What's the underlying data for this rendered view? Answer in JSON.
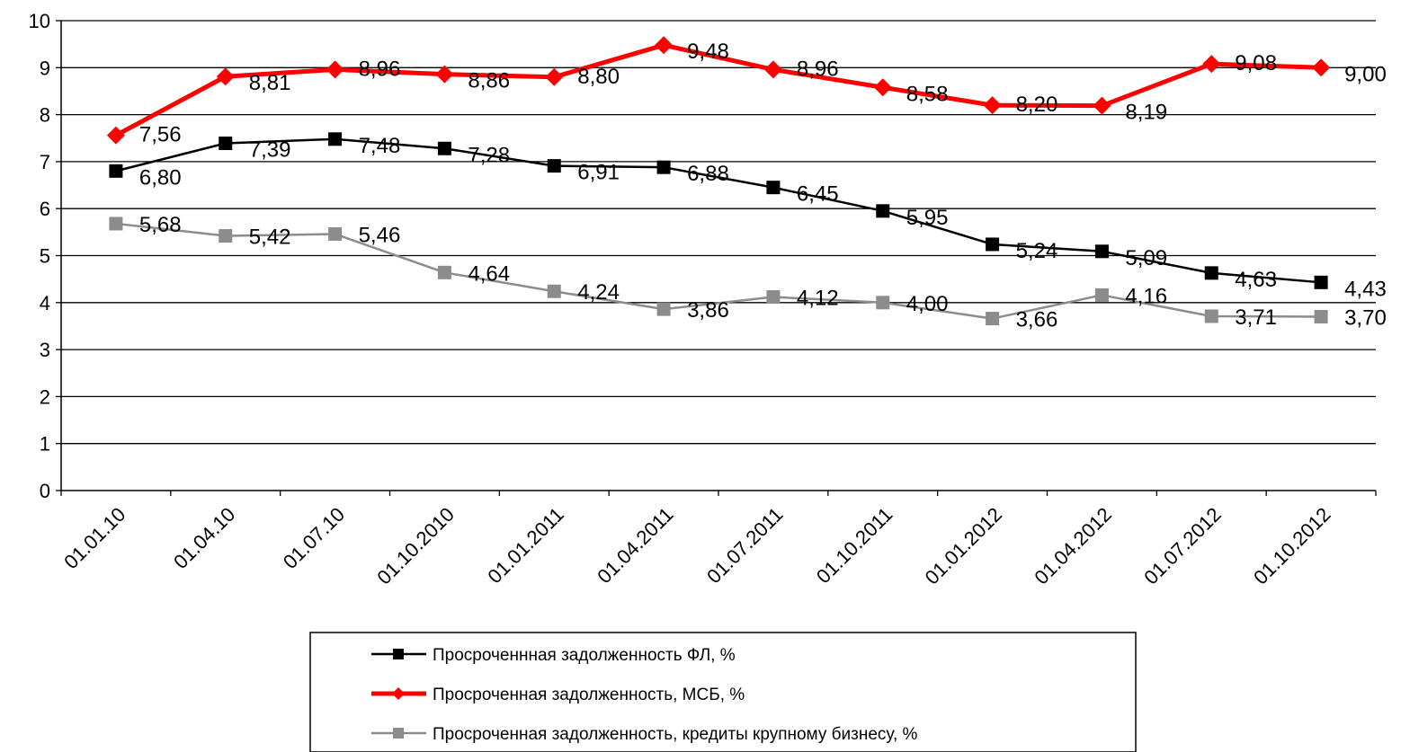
{
  "chart_data": {
    "type": "line",
    "title": "",
    "xlabel": "",
    "ylabel": "",
    "categories": [
      "01.01.10",
      "01.04.10",
      "01.07.10",
      "01.10.2010",
      "01.01.2011",
      "01.04.2011",
      "01.07.2011",
      "01.10.2011",
      "01.01.2012",
      "01.04.2012",
      "01.07.2012",
      "01.10.2012"
    ],
    "ylim": [
      0,
      10
    ],
    "yticks": [
      0,
      1,
      2,
      3,
      4,
      5,
      6,
      7,
      8,
      9,
      10
    ],
    "grid": "horizontal",
    "legend_position": "bottom",
    "series": [
      {
        "name": "Просроченнная задолженность ФЛ, %",
        "color": "#000000",
        "marker": "square",
        "values": [
          6.8,
          7.39,
          7.48,
          7.28,
          6.91,
          6.88,
          6.45,
          5.95,
          5.24,
          5.09,
          4.63,
          4.43
        ],
        "labels": [
          "6,80",
          "7,39",
          "7,48",
          "7,28",
          "6,91",
          "6,88",
          "6,45",
          "5,95",
          "5,24",
          "5,09",
          "4,63",
          "4,43"
        ]
      },
      {
        "name": "Просроченная задолженность, МСБ, %",
        "color": "#ff0000",
        "marker": "diamond",
        "values": [
          7.56,
          8.81,
          8.96,
          8.86,
          8.8,
          9.48,
          8.96,
          8.58,
          8.2,
          8.19,
          9.08,
          9.0
        ],
        "labels": [
          "7,56",
          "8,81",
          "8,96",
          "8,86",
          "8,80",
          "9,48",
          "8,96",
          "8,58",
          "8,20",
          "8,19",
          "9,08",
          "9,00"
        ]
      },
      {
        "name": "Просроченная задолженность, кредиты крупному бизнесу, %",
        "color": "#8c8c8c",
        "marker": "square",
        "values": [
          5.68,
          5.42,
          5.46,
          4.64,
          4.24,
          3.86,
          4.12,
          4.0,
          3.66,
          4.16,
          3.71,
          3.7
        ],
        "labels": [
          "5,68",
          "5,42",
          "5,46",
          "4,64",
          "4,24",
          "3,86",
          "4,12",
          "4,00",
          "3,66",
          "4,16",
          "3,71",
          "3,70"
        ]
      }
    ]
  }
}
